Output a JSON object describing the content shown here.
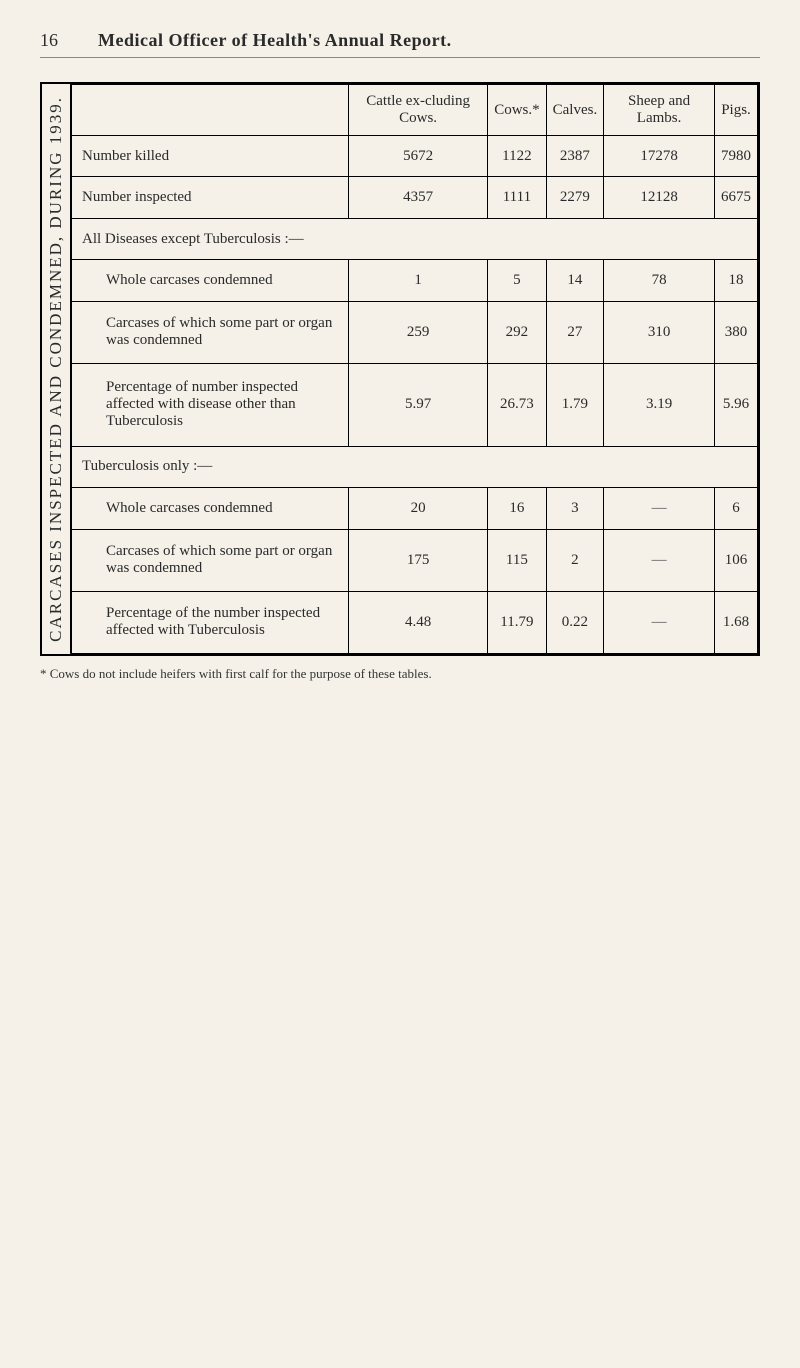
{
  "header": {
    "page_number": "16",
    "running_title": "Medical Officer of Health's Annual Report."
  },
  "table": {
    "caption": "CARCASES INSPECTED AND CONDEMNED, DURING 1939.",
    "columns": [
      "Cattle ex-cluding Cows.",
      "Cows.*",
      "Calves.",
      "Sheep and Lambs.",
      "Pigs."
    ],
    "rows": [
      {
        "label": "Number killed",
        "cells": [
          "5672",
          "1122",
          "2387",
          "17278",
          "7980"
        ]
      },
      {
        "label": "Number inspected",
        "cells": [
          "4357",
          "1111",
          "2279",
          "12128",
          "6675"
        ]
      }
    ],
    "section_a": {
      "title": "All Diseases except Tuberculosis :—",
      "rows": [
        {
          "label": "Whole carcases condemned",
          "cells": [
            "1",
            "5",
            "14",
            "78",
            "18"
          ]
        },
        {
          "label": "Carcases of which some part or organ was condemned",
          "cells": [
            "259",
            "292",
            "27",
            "310",
            "380"
          ]
        },
        {
          "label": "Percentage of number inspected affected with disease other than Tuberculosis",
          "cells": [
            "5.97",
            "26.73",
            "1.79",
            "3.19",
            "5.96"
          ]
        }
      ]
    },
    "section_b": {
      "title": "Tuberculosis only :—",
      "rows": [
        {
          "label": "Whole carcases condemned",
          "cells": [
            "20",
            "16",
            "3",
            "—",
            "6"
          ]
        },
        {
          "label": "Carcases of which some part or organ was condemned",
          "cells": [
            "175",
            "115",
            "2",
            "—",
            "106"
          ]
        },
        {
          "label": "Percentage of the number inspected affected with Tuberculosis",
          "cells": [
            "4.48",
            "11.79",
            "0.22",
            "—",
            "1.68"
          ]
        }
      ]
    }
  },
  "footnote": "* Cows do not include heifers with first calf for the purpose of these tables."
}
